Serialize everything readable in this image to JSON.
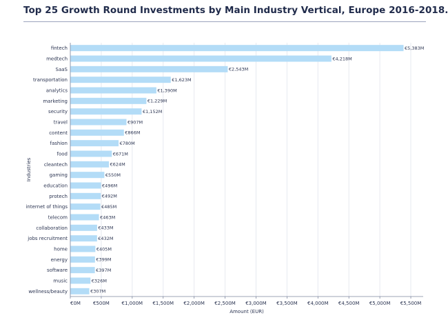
{
  "chart_data": {
    "type": "bar",
    "orientation": "horizontal",
    "title": "Top 25 Growth Round Investments by Main Industry Vertical, Europe 2016-2018.",
    "xlabel": "Amount (EUR)",
    "ylabel": "Industries",
    "xlim": [
      0,
      5700
    ],
    "grid": true,
    "bar_color": "#b3dcf7",
    "categories": [
      "fintech",
      "medtech",
      "SaaS",
      "transportation",
      "analytics",
      "marketing",
      "security",
      "travel",
      "content",
      "fashion",
      "food",
      "cleantech",
      "gaming",
      "education",
      "protech",
      "internet of things",
      "telecom",
      "collaboration",
      "jobs recruitment",
      "home",
      "energy",
      "software",
      "music",
      "wellness/beauty"
    ],
    "values": [
      5383,
      4218,
      2543,
      1623,
      1390,
      1229,
      1152,
      907,
      866,
      780,
      671,
      624,
      550,
      496,
      492,
      485,
      463,
      433,
      432,
      405,
      399,
      397,
      326,
      307
    ],
    "value_labels": [
      "€5,383M",
      "€4,218M",
      "€2,543M",
      "€1,623M",
      "€1,390M",
      "€1,229M",
      "€1,152M",
      "€907M",
      "€866M",
      "€780M",
      "€671M",
      "€624M",
      "€550M",
      "€496M",
      "€492M",
      "€485M",
      "€463M",
      "€433M",
      "€432M",
      "€405M",
      "€399M",
      "€397M",
      "€326M",
      "€307M"
    ],
    "x_ticks": [
      0,
      500,
      1000,
      1500,
      2000,
      2500,
      3000,
      3500,
      4000,
      4500,
      5000,
      5500
    ],
    "x_tick_labels": [
      "€0M",
      "€500M",
      "€1,000M",
      "€1,500M",
      "€2,000M",
      "€2,500M",
      "€3,000M",
      "€3,500M",
      "€4,000M",
      "€4,500M",
      "€5,000M",
      "€5,500M"
    ]
  }
}
